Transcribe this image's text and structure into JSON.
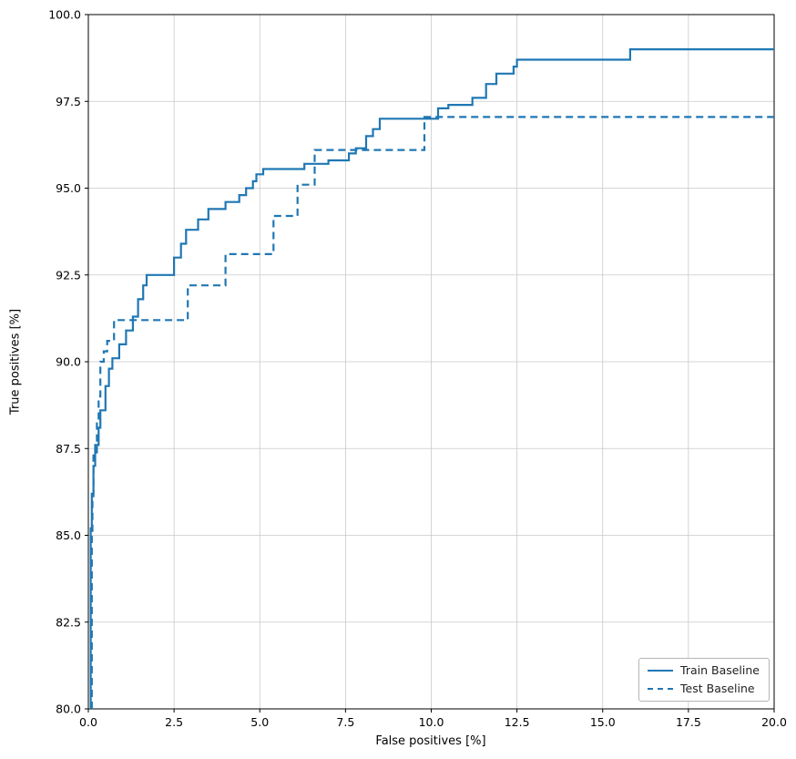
{
  "chart_data": {
    "type": "line",
    "title": "",
    "xlabel": "False positives [%]",
    "ylabel": "True positives [%]",
    "xlim": [
      0,
      20
    ],
    "ylim": [
      80,
      100
    ],
    "xticks": [
      0,
      2.5,
      5,
      7.5,
      10,
      12.5,
      15,
      17.5,
      20
    ],
    "yticks": [
      80,
      82.5,
      85,
      87.5,
      90,
      92.5,
      95,
      97.5,
      100
    ],
    "grid": true,
    "legend_position": "lower right",
    "line_color": "#1f77b4",
    "series": [
      {
        "name": "Train Baseline",
        "dash": "solid",
        "points": [
          [
            0.07,
            80.0
          ],
          [
            0.07,
            85.2
          ],
          [
            0.1,
            85.2
          ],
          [
            0.1,
            86.2
          ],
          [
            0.15,
            86.2
          ],
          [
            0.15,
            87.0
          ],
          [
            0.2,
            87.0
          ],
          [
            0.2,
            87.6
          ],
          [
            0.3,
            87.6
          ],
          [
            0.3,
            88.1
          ],
          [
            0.35,
            88.1
          ],
          [
            0.35,
            88.6
          ],
          [
            0.5,
            88.6
          ],
          [
            0.5,
            89.3
          ],
          [
            0.6,
            89.3
          ],
          [
            0.6,
            89.8
          ],
          [
            0.7,
            89.8
          ],
          [
            0.7,
            90.1
          ],
          [
            0.9,
            90.1
          ],
          [
            0.9,
            90.5
          ],
          [
            1.1,
            90.5
          ],
          [
            1.1,
            90.9
          ],
          [
            1.3,
            90.9
          ],
          [
            1.3,
            91.3
          ],
          [
            1.45,
            91.3
          ],
          [
            1.45,
            91.8
          ],
          [
            1.6,
            91.8
          ],
          [
            1.6,
            92.2
          ],
          [
            1.7,
            92.2
          ],
          [
            1.7,
            92.5
          ],
          [
            2.5,
            92.5
          ],
          [
            2.5,
            93.0
          ],
          [
            2.7,
            93.0
          ],
          [
            2.7,
            93.4
          ],
          [
            2.85,
            93.4
          ],
          [
            2.85,
            93.8
          ],
          [
            3.2,
            93.8
          ],
          [
            3.2,
            94.1
          ],
          [
            3.5,
            94.1
          ],
          [
            3.5,
            94.4
          ],
          [
            4.0,
            94.4
          ],
          [
            4.0,
            94.6
          ],
          [
            4.4,
            94.6
          ],
          [
            4.4,
            94.8
          ],
          [
            4.6,
            94.8
          ],
          [
            4.6,
            95.0
          ],
          [
            4.8,
            95.0
          ],
          [
            4.8,
            95.2
          ],
          [
            4.9,
            95.2
          ],
          [
            4.9,
            95.4
          ],
          [
            5.1,
            95.4
          ],
          [
            5.1,
            95.55
          ],
          [
            6.3,
            95.55
          ],
          [
            6.3,
            95.7
          ],
          [
            7.0,
            95.7
          ],
          [
            7.0,
            95.8
          ],
          [
            7.6,
            95.8
          ],
          [
            7.6,
            96.0
          ],
          [
            7.8,
            96.0
          ],
          [
            7.8,
            96.15
          ],
          [
            8.1,
            96.15
          ],
          [
            8.1,
            96.5
          ],
          [
            8.3,
            96.5
          ],
          [
            8.3,
            96.7
          ],
          [
            8.5,
            96.7
          ],
          [
            8.5,
            97.0
          ],
          [
            10.2,
            97.0
          ],
          [
            10.2,
            97.3
          ],
          [
            10.5,
            97.3
          ],
          [
            10.5,
            97.4
          ],
          [
            11.2,
            97.4
          ],
          [
            11.2,
            97.6
          ],
          [
            11.6,
            97.6
          ],
          [
            11.6,
            98.0
          ],
          [
            11.9,
            98.0
          ],
          [
            11.9,
            98.3
          ],
          [
            12.4,
            98.3
          ],
          [
            12.4,
            98.5
          ],
          [
            12.5,
            98.5
          ],
          [
            12.5,
            98.7
          ],
          [
            15.8,
            98.7
          ],
          [
            15.8,
            99.0
          ],
          [
            20.0,
            99.0
          ]
        ]
      },
      {
        "name": "Test Baseline",
        "dash": "dashed",
        "points": [
          [
            0.1,
            80.0
          ],
          [
            0.1,
            85.0
          ],
          [
            0.12,
            85.0
          ],
          [
            0.12,
            86.0
          ],
          [
            0.15,
            86.0
          ],
          [
            0.15,
            87.3
          ],
          [
            0.25,
            87.3
          ],
          [
            0.25,
            88.3
          ],
          [
            0.3,
            88.3
          ],
          [
            0.3,
            89.0
          ],
          [
            0.35,
            89.0
          ],
          [
            0.35,
            90.0
          ],
          [
            0.45,
            90.0
          ],
          [
            0.45,
            90.3
          ],
          [
            0.55,
            90.3
          ],
          [
            0.55,
            90.6
          ],
          [
            0.75,
            90.6
          ],
          [
            0.75,
            91.2
          ],
          [
            2.9,
            91.2
          ],
          [
            2.9,
            92.2
          ],
          [
            4.0,
            92.2
          ],
          [
            4.0,
            93.1
          ],
          [
            5.4,
            93.1
          ],
          [
            5.4,
            94.2
          ],
          [
            6.1,
            94.2
          ],
          [
            6.1,
            95.1
          ],
          [
            6.6,
            95.1
          ],
          [
            6.6,
            96.1
          ],
          [
            9.8,
            96.1
          ],
          [
            9.8,
            97.05
          ],
          [
            20.0,
            97.05
          ]
        ]
      }
    ]
  },
  "legend": {
    "items": [
      {
        "label": "Train Baseline"
      },
      {
        "label": "Test Baseline"
      }
    ]
  }
}
